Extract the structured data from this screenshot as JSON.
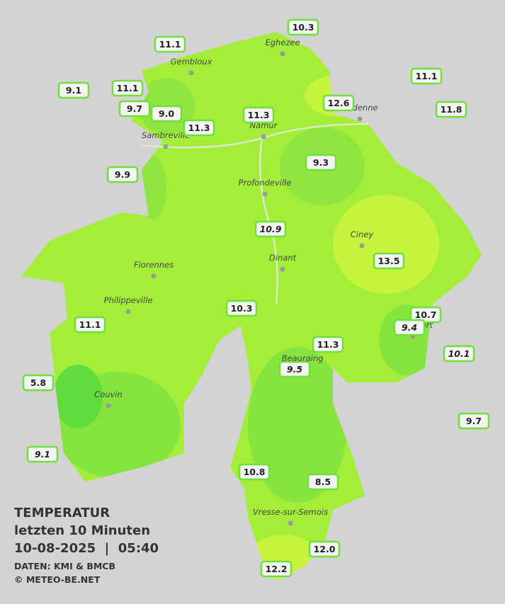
{
  "map": {
    "stations": [
      "10.3",
      "11.1",
      "11.1",
      "9.1",
      "11.1",
      "12.6",
      "11.8",
      "9.7",
      "9.0",
      "11.3",
      "11.3",
      "9.9",
      "9.3",
      "10.9",
      "13.5",
      "10.3",
      "10.7",
      "9.4",
      "11.1",
      "11.3",
      "10.1",
      "9.5",
      "5.8",
      "9.7",
      "9.1",
      "10.8",
      "8.5",
      "12.0",
      "12.2"
    ],
    "cities": [
      "Eghezee",
      "Gembloux",
      "Andenne",
      "Namur",
      "Sambreville",
      "Profondeville",
      "Ciney",
      "Dinant",
      "Florennes",
      "Philippeville",
      "Rochefort",
      "Beauraing",
      "Couvin",
      "Vresse-sur-Semois"
    ]
  },
  "legend": {
    "title": "TEMPERATUR",
    "subtitle": "letzten 10 Minuten",
    "datetime": "10-08-2025  |  05:40",
    "source": "DATEN: KMI & BMCB",
    "credit": "© METEO-BE.NET"
  }
}
